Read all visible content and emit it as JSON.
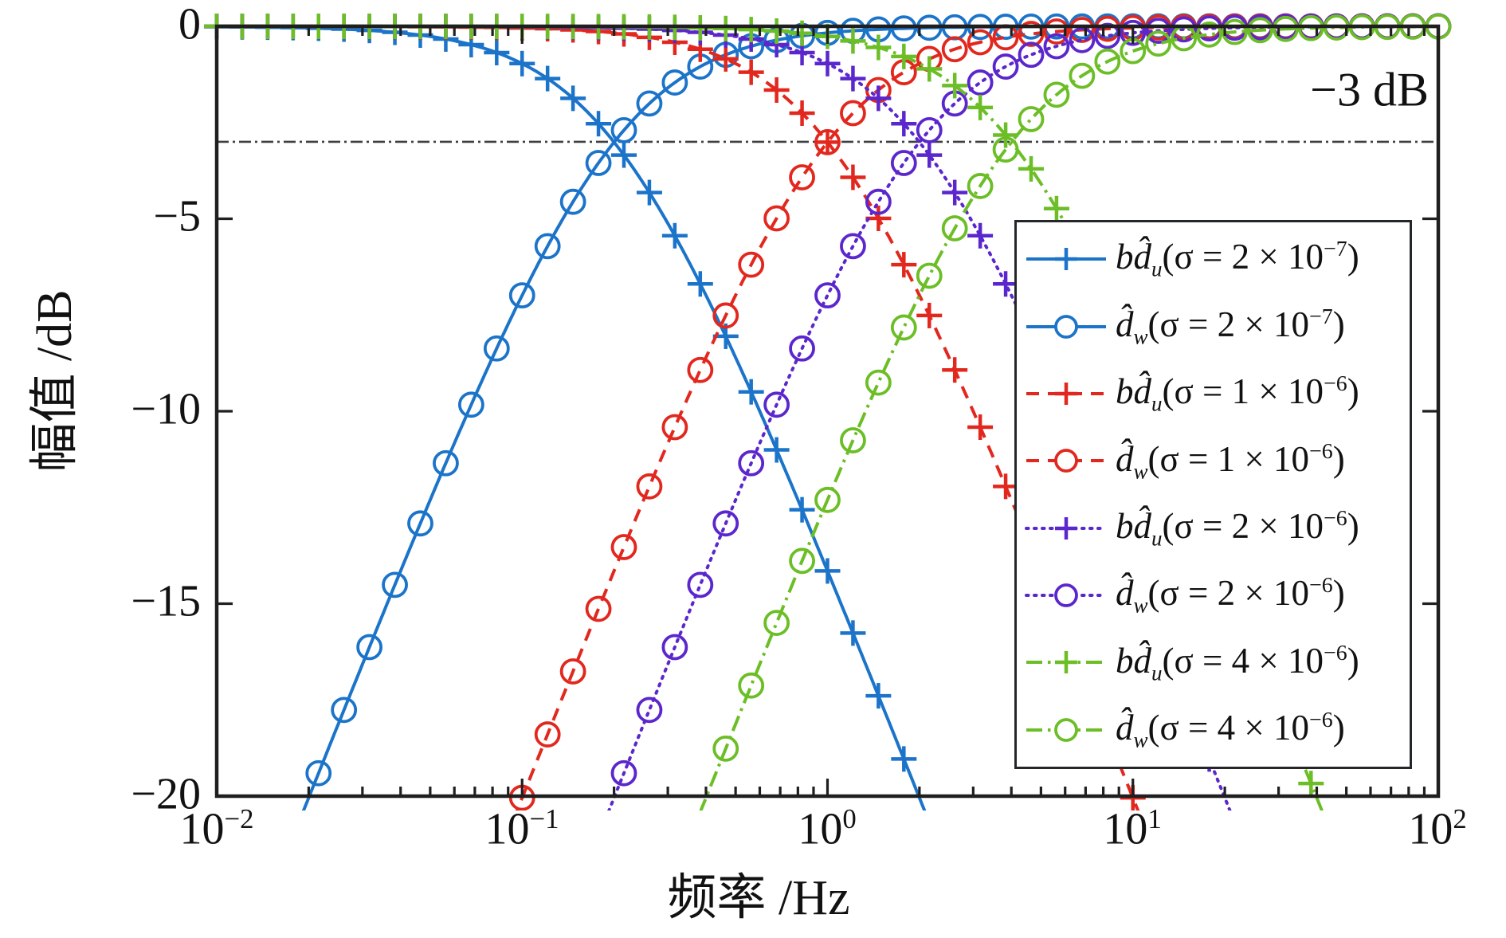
{
  "figure": {
    "background": "#ffffff",
    "annotation": {
      "text": "−3 dB"
    },
    "x_axis": {
      "title_cjk": "频率",
      "title_unit": " /Hz",
      "scale": "log",
      "ticks": [
        {
          "base": "10",
          "exp": "−2"
        },
        {
          "base": "10",
          "exp": "−1"
        },
        {
          "base": "10",
          "exp": "0"
        },
        {
          "base": "10",
          "exp": "1"
        },
        {
          "base": "10",
          "exp": "2"
        }
      ]
    },
    "y_axis": {
      "title_cjk": "幅值",
      "title_unit": " /dB",
      "ticks": [
        "0",
        "−5",
        "−10",
        "−15",
        "−20"
      ]
    }
  },
  "legend": {
    "items": [
      {
        "base": "bd̂",
        "sub": "u",
        "sigma_pre": "(σ = 2 × 10",
        "exp": "−7",
        "close": ")"
      },
      {
        "base": "d̂",
        "sub": "w",
        "sigma_pre": "(σ = 2 × 10",
        "exp": "−7",
        "close": ")"
      },
      {
        "base": "bd̂",
        "sub": "u",
        "sigma_pre": "(σ = 1 × 10",
        "exp": "−6",
        "close": ")"
      },
      {
        "base": "d̂",
        "sub": "w",
        "sigma_pre": "(σ = 1 × 10",
        "exp": "−6",
        "close": ")"
      },
      {
        "base": "bd̂",
        "sub": "u",
        "sigma_pre": "(σ = 2 × 10",
        "exp": "−6",
        "close": ")"
      },
      {
        "base": "d̂",
        "sub": "w",
        "sigma_pre": "(σ = 2 × 10",
        "exp": "−6",
        "close": ")"
      },
      {
        "base": "bd̂",
        "sub": "u",
        "sigma_pre": "(σ = 4 × 10",
        "exp": "−6",
        "close": ")"
      },
      {
        "base": "d̂",
        "sub": "w",
        "sigma_pre": "(σ = 4 × 10",
        "exp": "−6",
        "close": ")"
      }
    ]
  },
  "chart_data": {
    "type": "line",
    "title": "",
    "xlabel": "频率 /Hz",
    "ylabel": "幅值 /dB",
    "x_scale": "log",
    "x_range_hz": [
      0.01,
      100
    ],
    "y_range_db": [
      -20,
      0
    ],
    "grid": false,
    "legend_position": "lower right",
    "reference_line": {
      "db": -3,
      "label": "−3 dB",
      "style": "dash-dot",
      "color": "#3c4043"
    },
    "marker_every_decades": 0.0833,
    "series": [
      {
        "name": "bd̂u (σ = 2 × 10⁻⁷)",
        "sigma": 2e-07,
        "filter": "low-pass",
        "order": 1,
        "cutoff_hz": 0.2,
        "color": "#1b74c9",
        "line": "solid",
        "marker": "plus",
        "points_hz_db": [
          [
            0.01,
            0
          ],
          [
            0.05,
            -0.26
          ],
          [
            0.1,
            -0.97
          ],
          [
            0.2,
            -3.01
          ],
          [
            0.5,
            -8.6
          ],
          [
            1,
            -14.15
          ],
          [
            2,
            -20.04
          ]
        ]
      },
      {
        "name": "d̂w (σ = 2 × 10⁻⁷)",
        "sigma": 2e-07,
        "filter": "high-pass",
        "order": 1,
        "cutoff_hz": 0.2,
        "color": "#1b74c9",
        "line": "solid",
        "marker": "circle",
        "points_hz_db": [
          [
            0.02,
            -20.04
          ],
          [
            0.05,
            -12.3
          ],
          [
            0.1,
            -6.99
          ],
          [
            0.2,
            -3.01
          ],
          [
            0.5,
            -0.65
          ],
          [
            1,
            -0.17
          ],
          [
            10,
            0
          ],
          [
            100,
            0
          ]
        ]
      },
      {
        "name": "bd̂u (σ = 1 × 10⁻⁶)",
        "sigma": 1e-06,
        "filter": "low-pass",
        "order": 1,
        "cutoff_hz": 1.0,
        "color": "#e2281e",
        "line": "dashed",
        "marker": "plus",
        "points_hz_db": [
          [
            0.01,
            0
          ],
          [
            0.1,
            -0.04
          ],
          [
            0.5,
            -0.97
          ],
          [
            1,
            -3.01
          ],
          [
            2,
            -6.99
          ],
          [
            5,
            -14.15
          ],
          [
            10,
            -20.04
          ]
        ]
      },
      {
        "name": "d̂w (σ = 1 × 10⁻⁶)",
        "sigma": 1e-06,
        "filter": "high-pass",
        "order": 1,
        "cutoff_hz": 1.0,
        "color": "#e2281e",
        "line": "dashed",
        "marker": "circle",
        "points_hz_db": [
          [
            0.1,
            -20.04
          ],
          [
            0.2,
            -14.15
          ],
          [
            0.5,
            -6.99
          ],
          [
            1,
            -3.01
          ],
          [
            2,
            -0.97
          ],
          [
            5,
            -0.17
          ],
          [
            10,
            -0.04
          ],
          [
            100,
            0
          ]
        ]
      },
      {
        "name": "bd̂u (σ = 2 × 10⁻⁶)",
        "sigma": 2e-06,
        "filter": "low-pass",
        "order": 1,
        "cutoff_hz": 2.0,
        "color": "#5b27cd",
        "line": "dotted",
        "marker": "plus",
        "points_hz_db": [
          [
            0.01,
            0
          ],
          [
            0.2,
            -0.04
          ],
          [
            1,
            -0.97
          ],
          [
            2,
            -3.01
          ],
          [
            4,
            -6.99
          ],
          [
            10,
            -14.15
          ],
          [
            20,
            -20.04
          ]
        ]
      },
      {
        "name": "d̂w (σ = 2 × 10⁻⁶)",
        "sigma": 2e-06,
        "filter": "high-pass",
        "order": 1,
        "cutoff_hz": 2.0,
        "color": "#5b27cd",
        "line": "dotted",
        "marker": "circle",
        "points_hz_db": [
          [
            0.2,
            -20.04
          ],
          [
            0.4,
            -14.15
          ],
          [
            1,
            -6.99
          ],
          [
            2,
            -3.01
          ],
          [
            4,
            -0.97
          ],
          [
            10,
            -0.17
          ],
          [
            100,
            0
          ]
        ]
      },
      {
        "name": "bd̂u (σ = 4 × 10⁻⁶)",
        "sigma": 4e-06,
        "filter": "low-pass",
        "order": 1,
        "cutoff_hz": 4.0,
        "color": "#6cbe26",
        "line": "dashdot",
        "marker": "plus",
        "points_hz_db": [
          [
            0.01,
            0
          ],
          [
            0.4,
            -0.04
          ],
          [
            2,
            -0.97
          ],
          [
            4,
            -3.01
          ],
          [
            8,
            -6.99
          ],
          [
            20,
            -14.15
          ],
          [
            40,
            -20.04
          ]
        ]
      },
      {
        "name": "d̂w (σ = 4 × 10⁻⁶)",
        "sigma": 4e-06,
        "filter": "high-pass",
        "order": 1,
        "cutoff_hz": 4.0,
        "color": "#6cbe26",
        "line": "dashdot",
        "marker": "circle",
        "points_hz_db": [
          [
            0.4,
            -20.04
          ],
          [
            0.8,
            -14.15
          ],
          [
            2,
            -6.99
          ],
          [
            4,
            -3.01
          ],
          [
            8,
            -0.97
          ],
          [
            20,
            -0.17
          ],
          [
            100,
            0
          ]
        ]
      }
    ]
  }
}
